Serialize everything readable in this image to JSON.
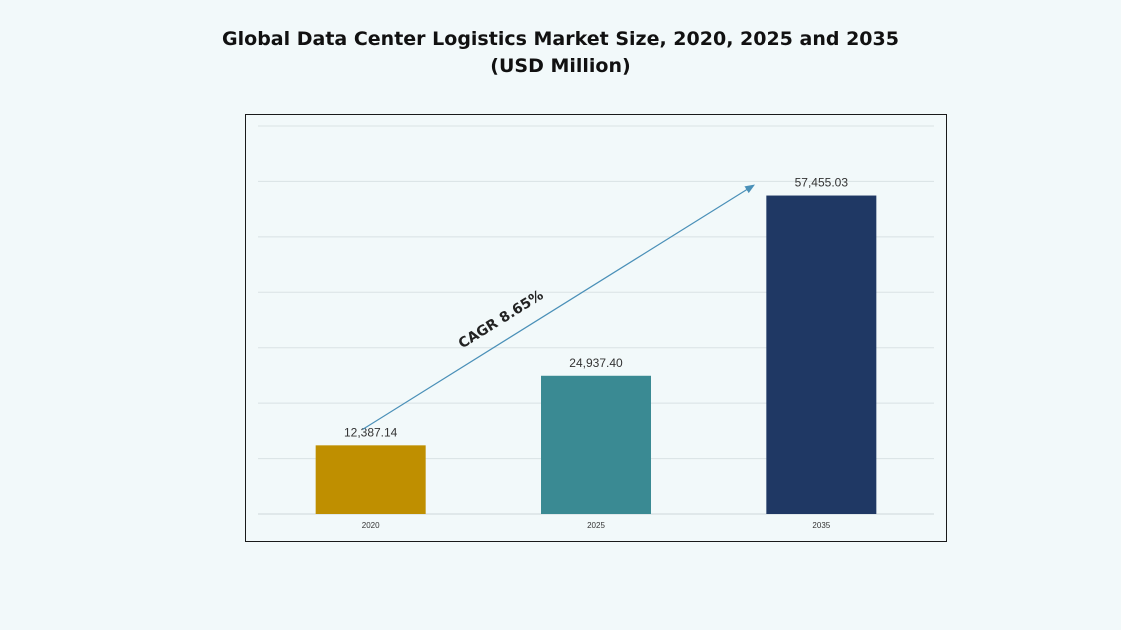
{
  "title": {
    "line1": "Global Data Center Logistics Market Size, 2020, 2025 and 2035",
    "line2": "(USD Million)"
  },
  "chart_data": {
    "type": "bar",
    "categories": [
      "2020",
      "2025",
      "2035"
    ],
    "values": [
      12387.14,
      24937.4,
      57455.03
    ],
    "value_labels": [
      "12,387.14",
      "24,937.40",
      "57,455.03"
    ],
    "colors": [
      "#bf8f00",
      "#3a8a93",
      "#1f3864"
    ],
    "ylim": [
      0,
      70000
    ],
    "grid": true,
    "annotation": {
      "text": "CAGR 8.65%",
      "type": "arrow",
      "from_category": "2020",
      "to_category": "2035",
      "color": "#4a90b8"
    }
  }
}
